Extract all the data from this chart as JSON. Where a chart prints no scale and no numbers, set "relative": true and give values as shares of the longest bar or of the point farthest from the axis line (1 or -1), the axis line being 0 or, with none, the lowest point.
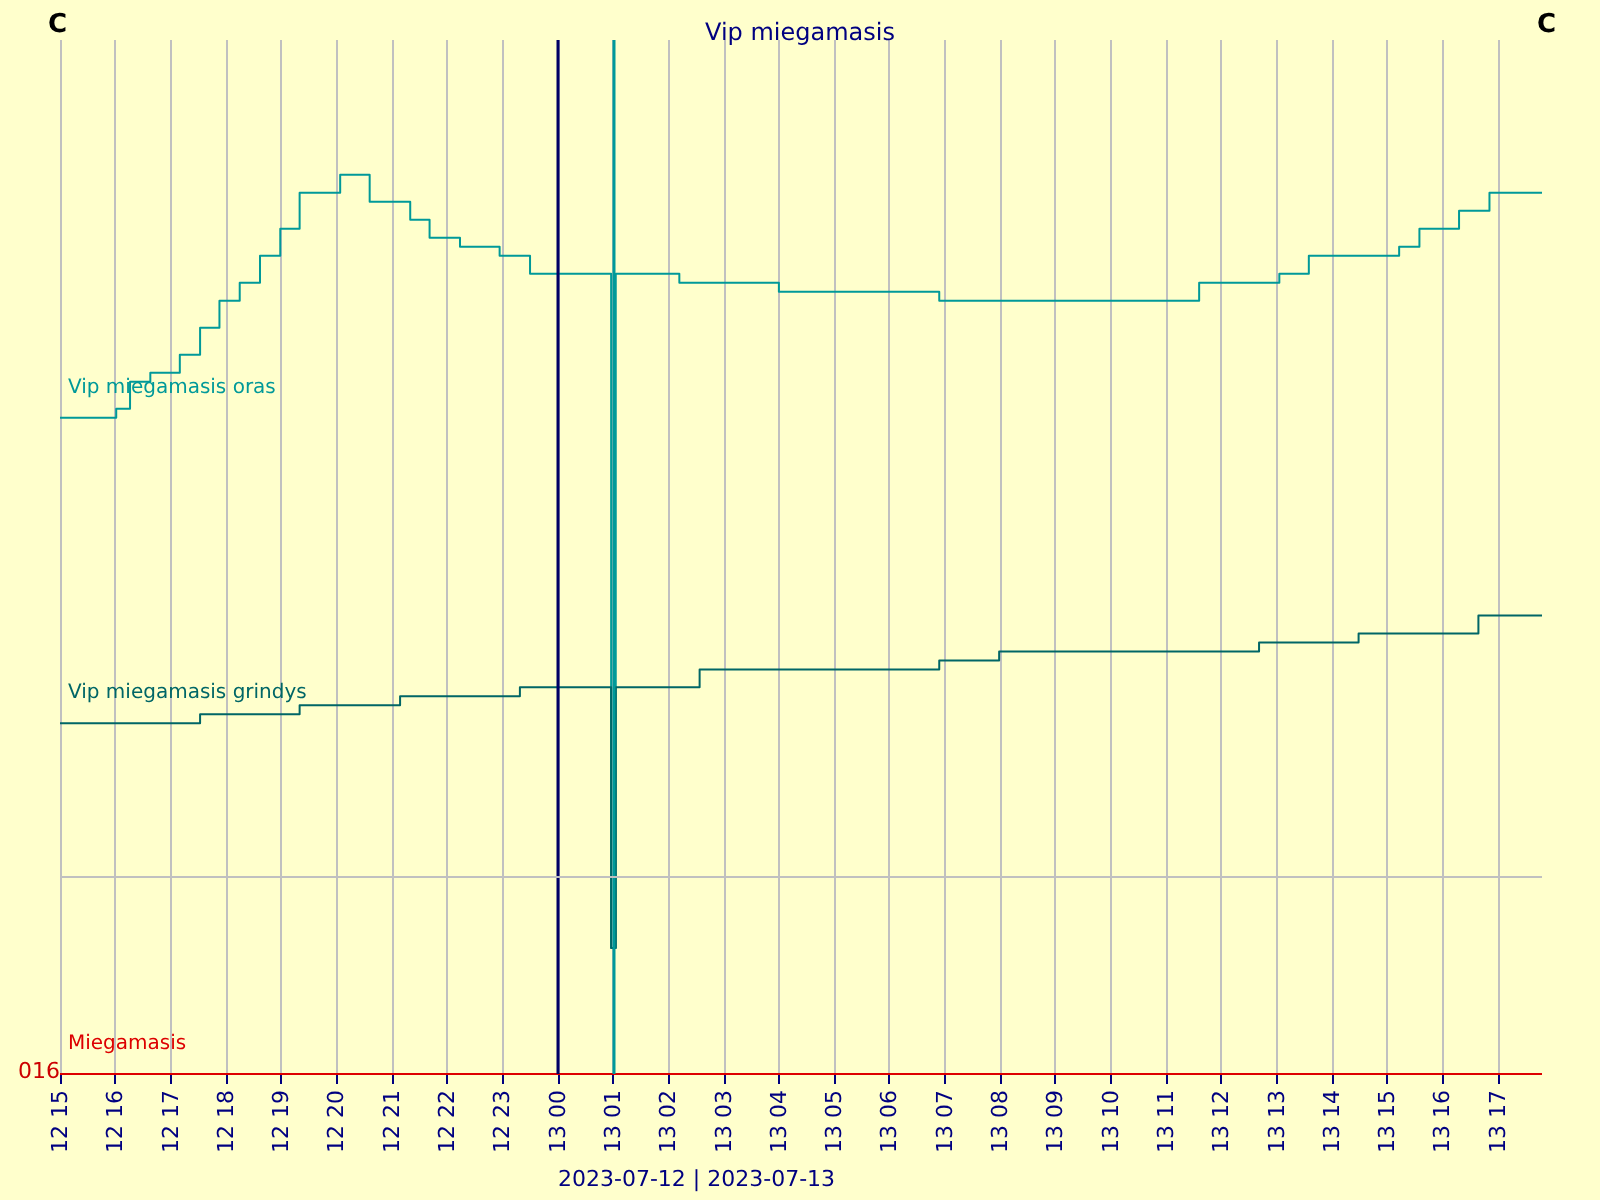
{
  "chart_data": {
    "type": "step",
    "title": "Vip miegamasis",
    "relative": true,
    "legend": false,
    "grid": "x",
    "marker": "none",
    "annotations": [
      "016",
      "2023-07-12 | 2023-07-13",
      "C",
      "C"
    ],
    "xlim": [
      "2023-07-12T15:00",
      "2023-07-13T17:48"
    ],
    "xticks": [
      {
        "value": "2023-07-12T15:00",
        "label": "12 15"
      },
      {
        "value": "2023-07-12T16:00",
        "label": "12 16"
      },
      {
        "value": "2023-07-12T17:00",
        "label": "12 17"
      },
      {
        "value": "2023-07-12T18:00",
        "label": "12 18"
      },
      {
        "value": "2023-07-12T19:00",
        "label": "12 19"
      },
      {
        "value": "2023-07-12T20:00",
        "label": "12 20"
      },
      {
        "value": "2023-07-12T21:00",
        "label": "12 21"
      },
      {
        "value": "2023-07-12T22:00",
        "label": "12 22"
      },
      {
        "value": "2023-07-12T23:00",
        "label": "12 23"
      },
      {
        "value": "2023-07-13T00:00",
        "label": "13 00"
      },
      {
        "value": "2023-07-13T01:00",
        "label": "13 01"
      },
      {
        "value": "2023-07-13T02:00",
        "label": "13 02"
      },
      {
        "value": "2023-07-13T03:00",
        "label": "13 03"
      },
      {
        "value": "2023-07-13T04:00",
        "label": "13 04"
      },
      {
        "value": "2023-07-13T05:00",
        "label": "13 05"
      },
      {
        "value": "2023-07-13T06:00",
        "label": "13 06"
      },
      {
        "value": "2023-07-13T07:00",
        "label": "13 07"
      },
      {
        "value": "2023-07-13T08:00",
        "label": "13 08"
      },
      {
        "value": "2023-07-13T09:00",
        "label": "13 09"
      },
      {
        "value": "2023-07-13T10:00",
        "label": "13 10"
      },
      {
        "value": "2023-07-13T11:00",
        "label": "13 11"
      },
      {
        "value": "2023-07-13T12:00",
        "label": "13 12"
      },
      {
        "value": "2023-07-13T13:00",
        "label": "13 13"
      },
      {
        "value": "2023-07-13T14:00",
        "label": "13 14"
      },
      {
        "value": "2023-07-13T15:00",
        "label": "13 15"
      },
      {
        "value": "2023-07-13T16:00",
        "label": "13 16"
      },
      {
        "value": "2023-07-13T17:00",
        "label": "13 17"
      }
    ],
    "ref_lines": [
      {
        "axis": "x",
        "value": "2023-07-13T00:00",
        "color": "#000066"
      },
      {
        "axis": "x",
        "value": "2023-07-13T01:00",
        "color": "#009999"
      },
      {
        "axis": "y",
        "value": 0.22,
        "color": "#c0c0c0"
      }
    ],
    "series": [
      {
        "name": "Vip miegamasis oras",
        "color": "#009999",
        "x": [
          "2023-07-12T15:00",
          "2023-07-12T16:01",
          "2023-07-12T16:16",
          "2023-07-12T16:38",
          "2023-07-12T17:10",
          "2023-07-12T17:32",
          "2023-07-12T17:53",
          "2023-07-12T18:15",
          "2023-07-12T18:37",
          "2023-07-12T18:59",
          "2023-07-12T19:20",
          "2023-07-12T20:04",
          "2023-07-12T20:36",
          "2023-07-12T21:20",
          "2023-07-12T21:41",
          "2023-07-12T22:14",
          "2023-07-12T22:57",
          "2023-07-12T23:30",
          "2023-07-13T00:54",
          "2023-07-13T00:58",
          "2023-07-13T01:03",
          "2023-07-13T02:12",
          "2023-07-13T04:00",
          "2023-07-13T06:54",
          "2023-07-13T09:26",
          "2023-07-13T10:52",
          "2023-07-13T11:36",
          "2023-07-13T13:03",
          "2023-07-13T13:35",
          "2023-07-13T15:13",
          "2023-07-13T15:35",
          "2023-07-13T16:18",
          "2023-07-13T16:51",
          "2023-07-13T17:34",
          "2023-07-13T17:48"
        ],
        "values": [
          0.73,
          0.74,
          0.77,
          0.78,
          0.8,
          0.83,
          0.86,
          0.88,
          0.91,
          0.94,
          0.98,
          1,
          0.97,
          0.95,
          0.93,
          0.92,
          0.91,
          0.89,
          0.89,
          0.14,
          0.89,
          0.88,
          0.87,
          0.86,
          0.86,
          0.86,
          0.88,
          0.89,
          0.91,
          0.92,
          0.94,
          0.96,
          0.98,
          0.98,
          0.98
        ]
      },
      {
        "name": "Vip miegamasis grindys",
        "color": "#006666",
        "x": [
          "2023-07-12T15:00",
          "2023-07-12T17:32",
          "2023-07-12T19:20",
          "2023-07-12T21:09",
          "2023-07-12T23:19",
          "2023-07-13T00:46",
          "2023-07-13T00:54",
          "2023-07-13T00:58",
          "2023-07-13T01:03",
          "2023-07-13T02:34",
          "2023-07-13T04:22",
          "2023-07-13T06:54",
          "2023-07-13T07:59",
          "2023-07-13T10:52",
          "2023-07-13T12:41",
          "2023-07-13T14:29",
          "2023-07-13T16:39",
          "2023-07-13T17:48"
        ],
        "values": [
          0.39,
          0.4,
          0.41,
          0.42,
          0.43,
          0.43,
          0.43,
          0.14,
          0.43,
          0.45,
          0.45,
          0.46,
          0.47,
          0.47,
          0.48,
          0.49,
          0.51,
          0.51
        ]
      },
      {
        "name": "Miegamasis",
        "color": "#dd0000",
        "x": [
          "2023-07-12T15:00",
          "2023-07-13T17:48"
        ],
        "values": [
          0,
          0
        ]
      }
    ]
  }
}
